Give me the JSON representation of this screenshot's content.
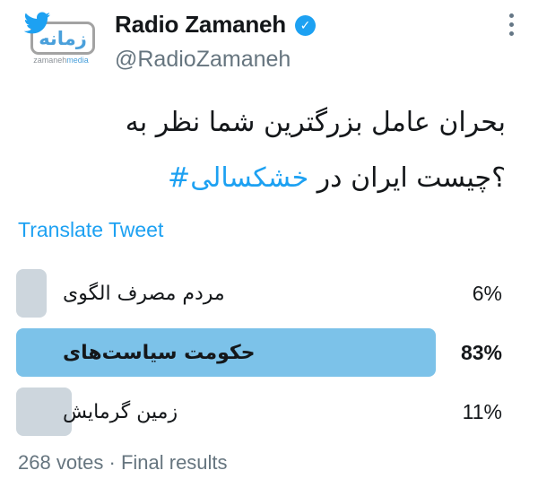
{
  "header": {
    "display_name": "Radio Zamaneh",
    "handle": "@RadioZamaneh",
    "avatar": {
      "badge_text": "زمانه",
      "subtext_primary": "zamaneh",
      "subtext_secondary": "media"
    },
    "icons": {
      "bird": "twitter-bird",
      "verified": "verified-badge",
      "menu": "more-options-vertical-dots"
    },
    "verified_glyph": "✓"
  },
  "tweet": {
    "line1": "به نظر شما بزرگترین عامل بحران",
    "line2_hashtag": "#خشکسالی",
    "line2_rest": "در ایران چیست",
    "line2_punct": "؟",
    "translate_label": "Translate Tweet"
  },
  "poll": {
    "options": [
      {
        "label": "الگوی مصرف مردم",
        "percent": "6%",
        "value": 6,
        "winner": false
      },
      {
        "label": "سیاست‌های حکومت",
        "percent": "83%",
        "value": 83,
        "winner": true
      },
      {
        "label": "گرمایش زمین",
        "percent": "11%",
        "value": 11,
        "winner": false
      }
    ],
    "footer": "268 votes · Final results",
    "status": "Final results",
    "total_votes": "268"
  },
  "colors": {
    "accent": "#1DA1F2",
    "winner_bar": "#7CC2E9",
    "loser_bar": "#CDD6DD",
    "text": "#14171A",
    "muted": "#66757F"
  }
}
